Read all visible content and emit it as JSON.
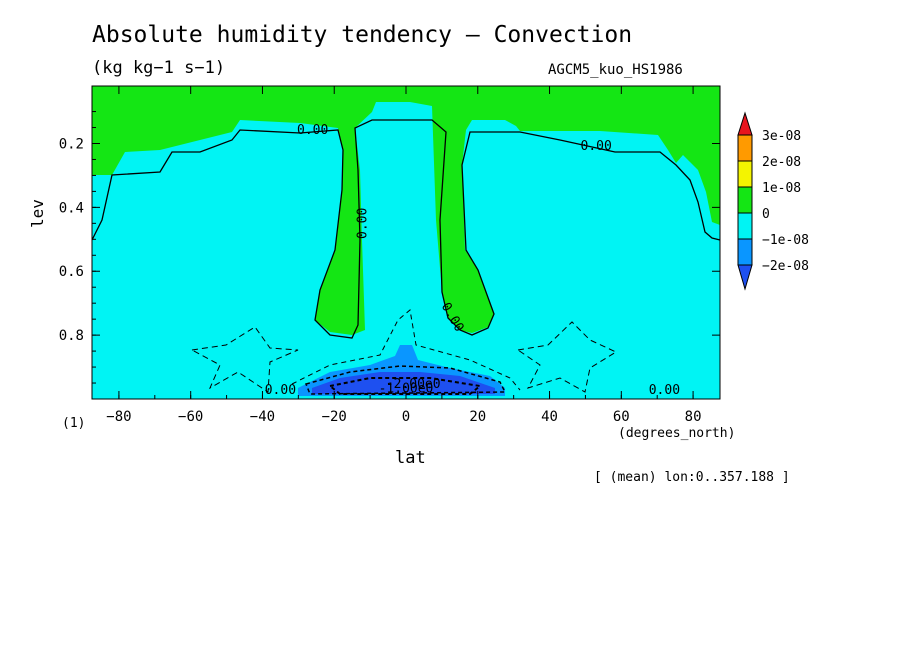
{
  "chart_data": {
    "type": "heatmap",
    "title": "Absolute humidity tendency — Convection",
    "subtitle": "(kg kg−1 s−1)",
    "model_label": "AGCM5_kuo_HS1986",
    "xlabel": "lat",
    "ylabel": "lev",
    "x_unit": "(degrees_north)",
    "y_unit": "(1)",
    "footnote": "[ (mean) lon:0..357.188 ]",
    "xlim": [
      -87.5,
      87.5
    ],
    "ylim": [
      1.0,
      0.02
    ],
    "x_ticks": [
      -80,
      -60,
      -40,
      -20,
      0,
      20,
      40,
      60,
      80
    ],
    "y_ticks": [
      0.2,
      0.4,
      0.6,
      0.8
    ],
    "colorbar": {
      "labels": [
        "3e-08",
        "2e-08",
        "1e-08",
        "0",
        "−1e-08",
        "−2e-08"
      ],
      "colors": [
        "#e8141e",
        "#ff9a00",
        "#f4f400",
        "#14e614",
        "#00f4f4",
        "#0a96ff",
        "#1e50f0"
      ]
    },
    "contour_labels": [
      {
        "text": "0.00",
        "lat": -26,
        "lev": 0.17
      },
      {
        "text": "0.00",
        "lat": 53,
        "lev": 0.22
      },
      {
        "text": "0.00",
        "lat": -11,
        "lev": 0.45
      },
      {
        "text": "0.00",
        "lat": 12,
        "lev": 0.75
      },
      {
        "text": "0.00",
        "lat": -35,
        "lev": 0.985
      },
      {
        "text": "0.00",
        "lat": 72,
        "lev": 0.985
      },
      {
        "text": "-2.00e0",
        "lat": 2,
        "lev": 0.965
      },
      {
        "text": "-1.00e0",
        "lat": 0,
        "lev": 0.98
      }
    ]
  }
}
